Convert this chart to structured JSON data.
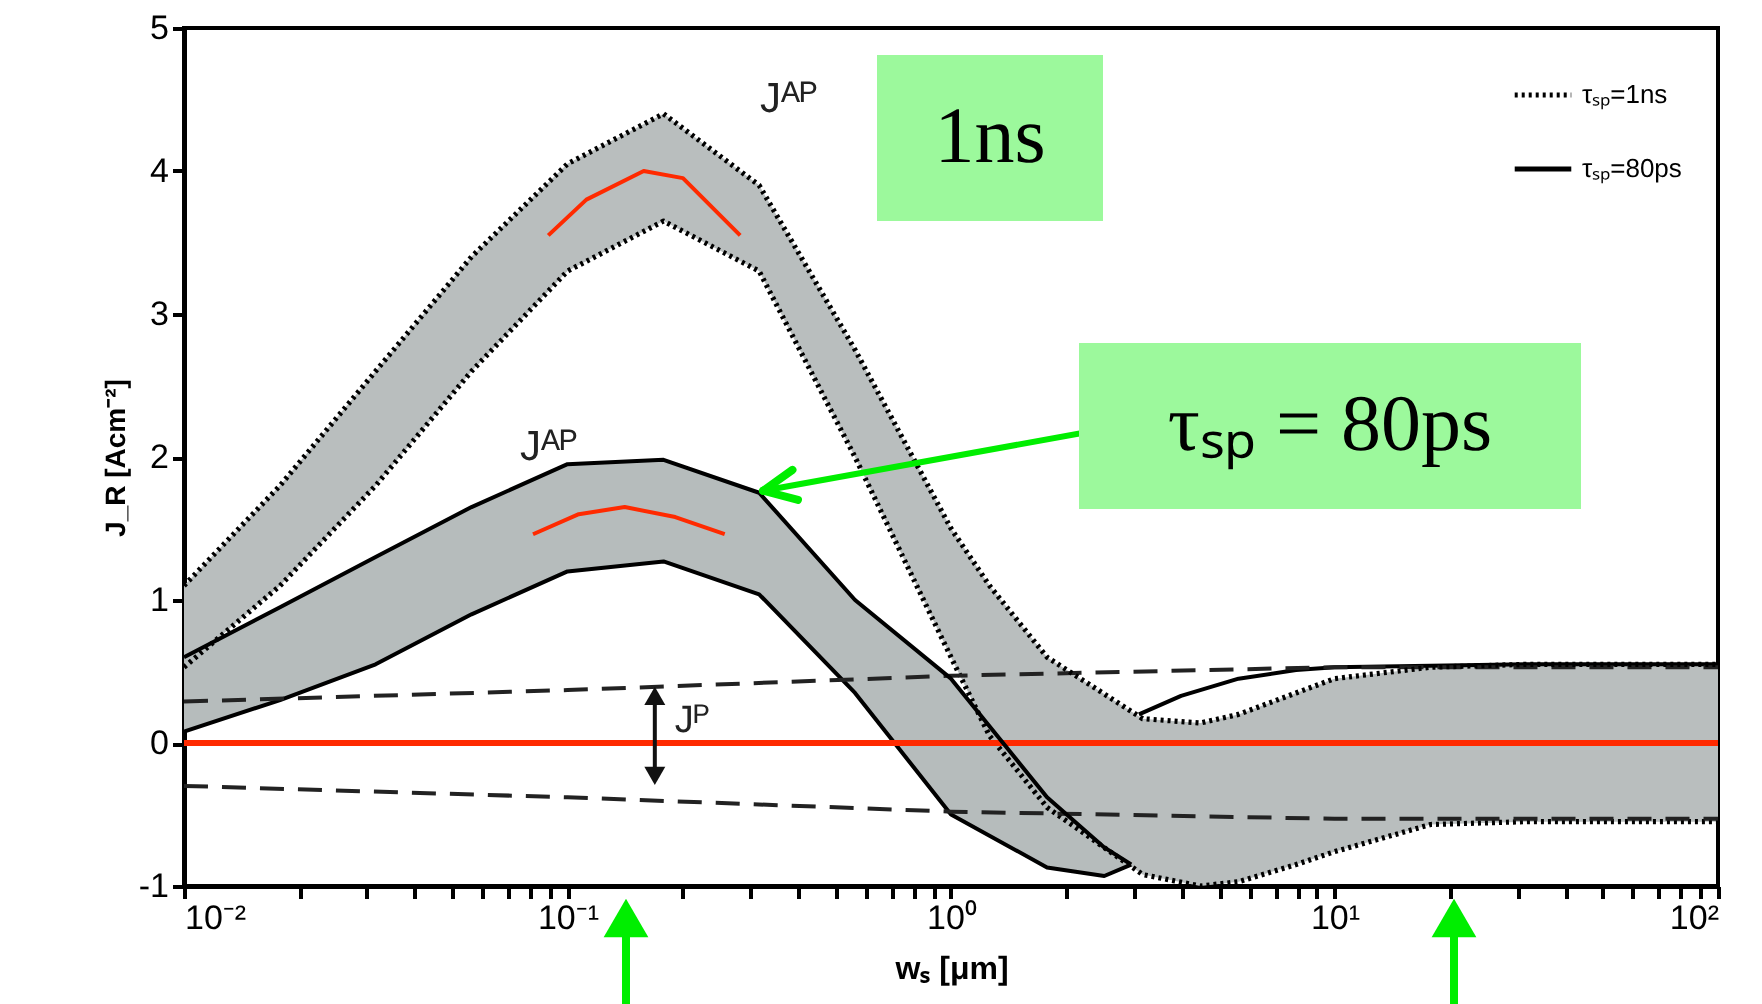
{
  "chart_data": {
    "type": "line",
    "xlabel": "wₛ [μm]",
    "ylabel": "J_R [Acm⁻²]",
    "log": "x",
    "xlim": [
      0.01,
      100
    ],
    "ylim": [
      -1,
      5
    ],
    "xticks": [
      {
        "value": 0.01,
        "label": "10⁻²"
      },
      {
        "value": 0.02,
        "label": null
      },
      {
        "value": 0.03,
        "label": null
      },
      {
        "value": 0.04,
        "label": null
      },
      {
        "value": 0.05,
        "label": null
      },
      {
        "value": 0.06,
        "label": null
      },
      {
        "value": 0.07,
        "label": null
      },
      {
        "value": 0.08,
        "label": null
      },
      {
        "value": 0.09,
        "label": null
      },
      {
        "value": 0.1,
        "label": "10⁻¹"
      },
      {
        "value": 0.2,
        "label": null
      },
      {
        "value": 0.3,
        "label": null
      },
      {
        "value": 0.4,
        "label": null
      },
      {
        "value": 0.5,
        "label": null
      },
      {
        "value": 0.6,
        "label": null
      },
      {
        "value": 0.7,
        "label": null
      },
      {
        "value": 0.8,
        "label": null
      },
      {
        "value": 0.9,
        "label": null
      },
      {
        "value": 1,
        "label": "10⁰"
      },
      {
        "value": 2,
        "label": null
      },
      {
        "value": 3,
        "label": null
      },
      {
        "value": 4,
        "label": null
      },
      {
        "value": 5,
        "label": null
      },
      {
        "value": 6,
        "label": null
      },
      {
        "value": 7,
        "label": null
      },
      {
        "value": 8,
        "label": null
      },
      {
        "value": 9,
        "label": null
      },
      {
        "value": 10,
        "label": "10¹"
      },
      {
        "value": 20,
        "label": null
      },
      {
        "value": 30,
        "label": null
      },
      {
        "value": 40,
        "label": null
      },
      {
        "value": 50,
        "label": null
      },
      {
        "value": 60,
        "label": null
      },
      {
        "value": 70,
        "label": null
      },
      {
        "value": 80,
        "label": null
      },
      {
        "value": 90,
        "label": null
      },
      {
        "value": 100,
        "label": "10²"
      }
    ],
    "yticks": [
      -1,
      0,
      1,
      2,
      3,
      4,
      5
    ],
    "grid": false,
    "legend": "top right",
    "series": [
      {
        "name": "τₛₚ=1ns",
        "color": "#000000",
        "line_style": "dotted",
        "x": [
          0.01,
          0.0178,
          0.0316,
          0.0562,
          0.1,
          0.178,
          0.316,
          0.562,
          1,
          1.26,
          1.78,
          3.16,
          4.47,
          5.62,
          7.94,
          10,
          17.8,
          31.6,
          100
        ],
        "values": [
          1.1,
          1.8,
          2.6,
          3.4,
          4.05,
          4.4,
          3.9,
          2.75,
          1.5,
          1.1,
          0.6,
          0.17,
          0.14,
          0.2,
          0.35,
          0.45,
          0.53,
          0.55,
          0.55
        ],
        "upper": [
          1.1,
          1.8,
          2.6,
          3.4,
          4.05,
          4.4,
          3.9,
          2.75,
          1.5,
          1.1,
          0.6,
          0.17,
          0.14,
          0.2,
          0.35,
          0.45,
          0.53,
          0.55,
          0.55
        ],
        "lower": [
          0.53,
          1.1,
          1.8,
          2.6,
          3.3,
          3.65,
          3.3,
          2.0,
          0.6,
          0.05,
          -0.45,
          -0.92,
          -1.0,
          -0.97,
          -0.85,
          -0.76,
          -0.57,
          -0.55,
          -0.55
        ]
      },
      {
        "name": "τₛₚ=80ps",
        "color": "#000000",
        "line_style": "solid",
        "x": [
          0.01,
          0.0178,
          0.0316,
          0.0562,
          0.1,
          0.178,
          0.316,
          0.562,
          1,
          1.78,
          2.51,
          2.95
        ],
        "values": [
          0.6,
          0.95,
          1.3,
          1.65,
          1.95,
          1.98,
          1.75,
          1.0,
          0.45,
          -0.38,
          -0.73,
          -0.85
        ],
        "upper": [
          0.6,
          0.95,
          1.3,
          1.65,
          1.95,
          1.98,
          1.75,
          1.0,
          0.45,
          -0.38,
          -0.73,
          -0.85
        ],
        "lower": [
          0.08,
          0.3,
          0.55,
          0.9,
          1.2,
          1.27,
          1.04,
          0.35,
          -0.5,
          -0.87,
          -0.93,
          -0.85
        ]
      },
      {
        "color": "#000000",
        "line_style": "dotted",
        "x": [
          0.01,
          0.0178,
          0.0316,
          0.0562,
          0.1,
          0.178,
          0.316,
          0.562,
          1,
          1.26,
          1.78,
          3.16,
          4.47,
          5.62,
          7.94,
          10,
          17.8,
          31.6,
          100
        ],
        "values": [
          0.53,
          1.1,
          1.8,
          2.6,
          3.3,
          3.65,
          3.3,
          2.0,
          0.6,
          0.05,
          -0.45,
          -0.92,
          -1.0,
          -0.97,
          -0.85,
          -0.76,
          -0.57,
          -0.55,
          -0.55
        ]
      },
      {
        "color": "#000000",
        "line_style": "solid",
        "x": [
          0.01,
          0.0178,
          0.0316,
          0.0562,
          0.1,
          0.178,
          0.316,
          0.562,
          1,
          1.78,
          2.51,
          2.95
        ],
        "values": [
          0.08,
          0.3,
          0.55,
          0.9,
          1.2,
          1.27,
          1.04,
          0.35,
          -0.5,
          -0.87,
          -0.93,
          -0.85
        ]
      },
      {
        "color": "#000000",
        "line_style": "solid",
        "x": [
          3.09,
          3.98,
          5.62,
          7.94,
          10,
          17.8,
          31.6,
          100
        ],
        "values": [
          0.2,
          0.33,
          0.45,
          0.51,
          0.53,
          0.54,
          0.55,
          0.55
        ]
      },
      {
        "color": "#222222",
        "line_style": "dashed",
        "x": [
          0.01,
          0.1,
          1,
          10,
          100
        ],
        "values": [
          0.29,
          0.37,
          0.47,
          0.53,
          0.53
        ]
      },
      {
        "color": "#222222",
        "line_style": "dashed",
        "x": [
          0.01,
          0.1,
          1,
          10,
          100
        ],
        "values": [
          -0.3,
          -0.38,
          -0.48,
          -0.53,
          -0.53
        ]
      },
      {
        "color": "#ff2a00",
        "line_style": "solid",
        "x": [
          0.0891,
          0.112,
          0.158,
          0.2,
          0.282
        ],
        "values": [
          3.55,
          3.8,
          4.0,
          3.95,
          3.55
        ]
      },
      {
        "color": "#ff2a00",
        "line_style": "solid",
        "x": [
          0.0813,
          0.107,
          0.141,
          0.191,
          0.257
        ],
        "values": [
          1.46,
          1.6,
          1.65,
          1.58,
          1.46
        ]
      }
    ],
    "ref_lines": [
      {
        "axis": "y",
        "value": 0,
        "color": "#ff2a00",
        "line_style": "solid"
      }
    ],
    "annotations": [
      "Jᴬᴾ",
      "Jᴬᴾ",
      {
        "text": "Jᴾ",
        "x": 0.22,
        "y": 0.05
      },
      "1ns",
      {
        "text": "τₛₚ = 80ps",
        "x": 0.316,
        "y": 1.75
      }
    ]
  }
}
